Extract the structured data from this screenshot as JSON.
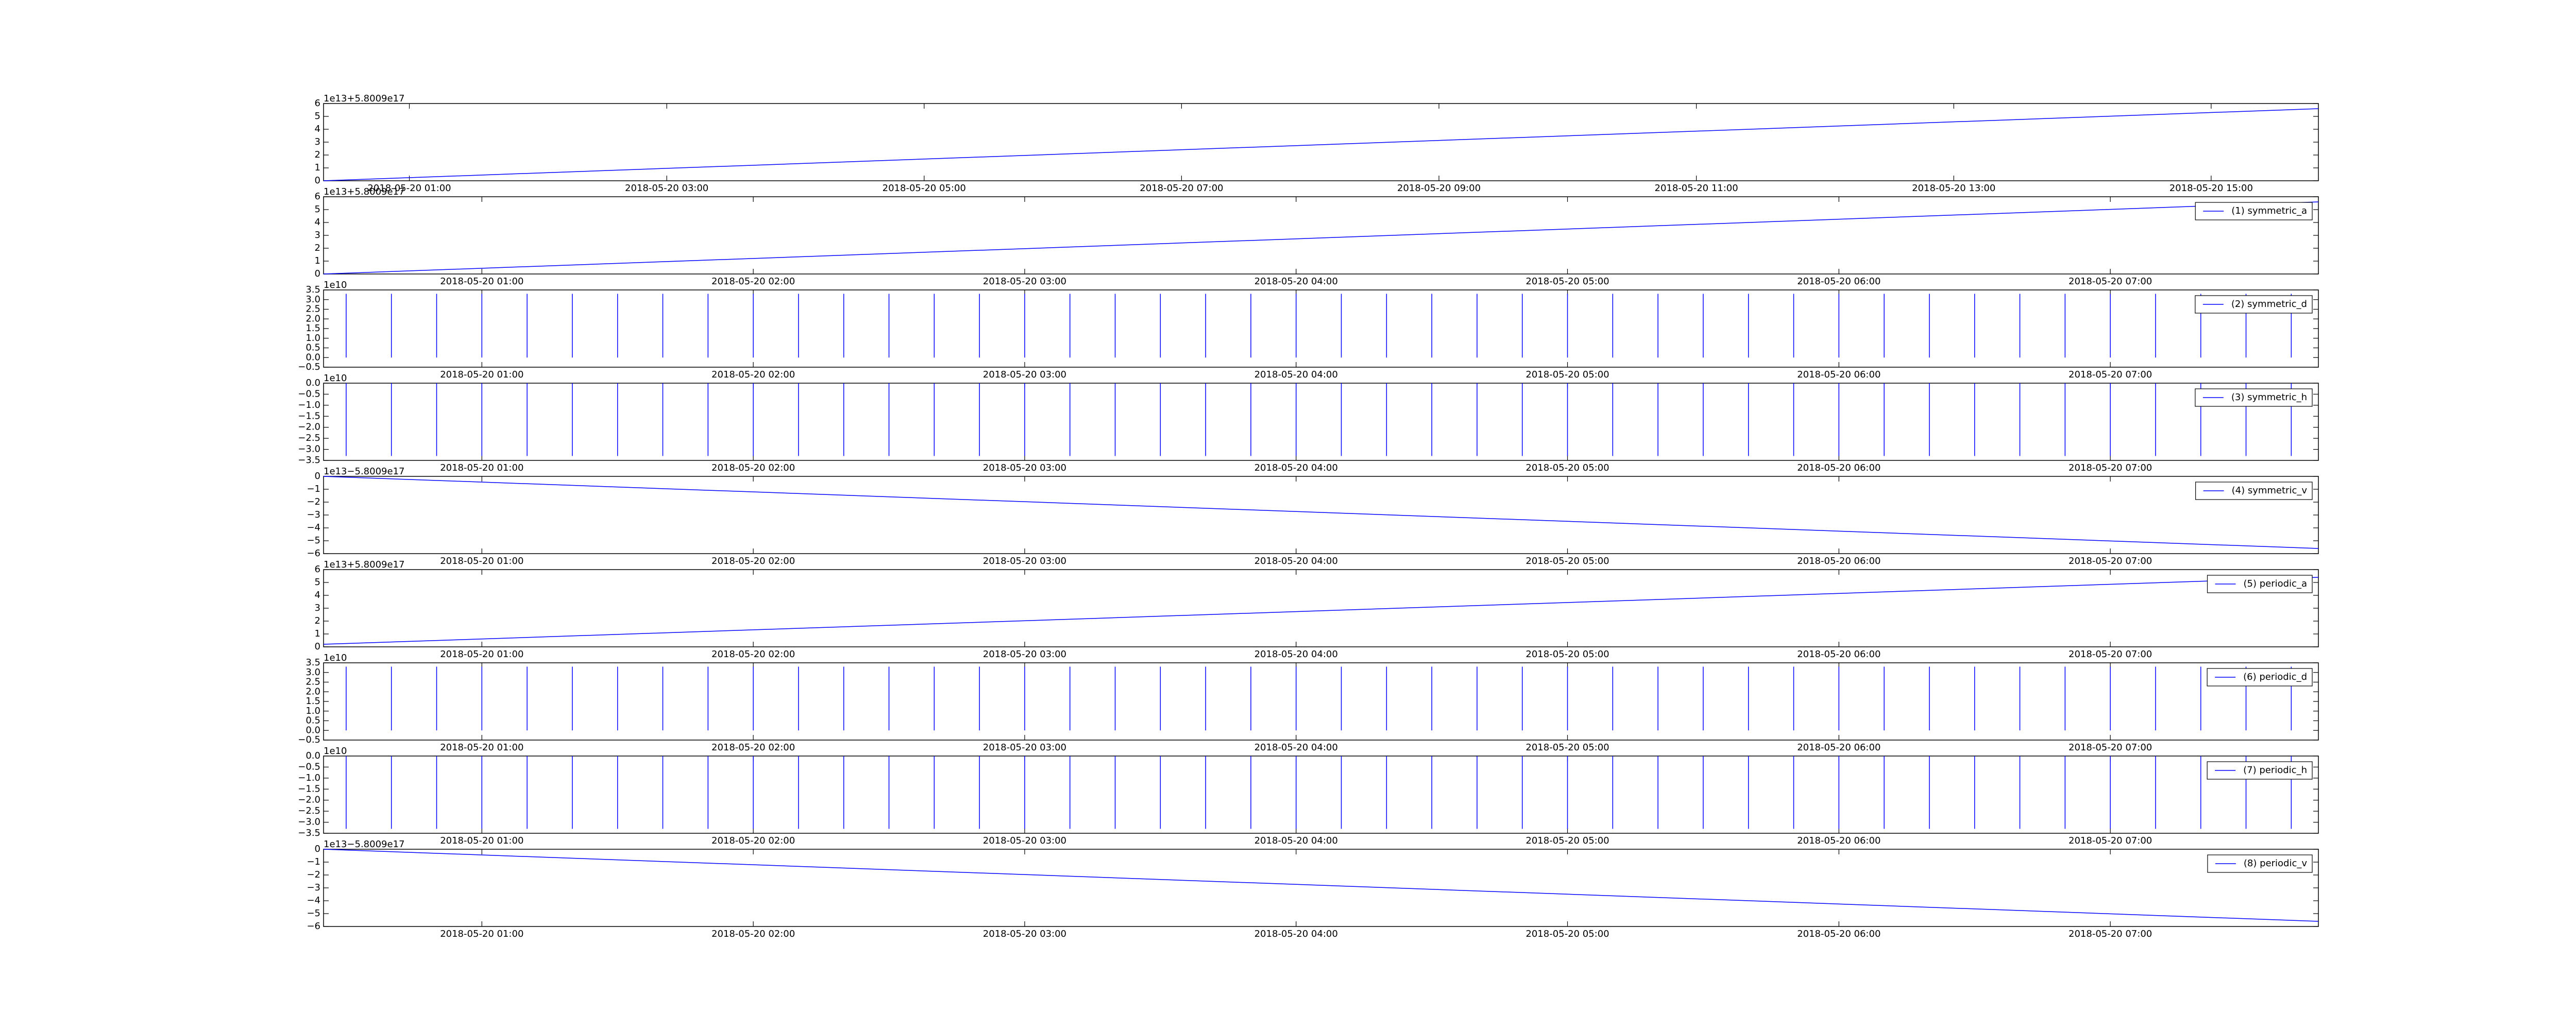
{
  "chart_data": [
    {
      "type": "line",
      "offset_text": "1e13+5.8009e17",
      "x": [
        "2018-05-20 00:20",
        "2018-05-20 15:50"
      ],
      "values": [
        0,
        5.6
      ],
      "color": "#0000ff",
      "xlim": [
        "2018-05-20 00:20",
        "2018-05-20 15:50"
      ],
      "xticks": [
        "2018-05-20 01:00",
        "2018-05-20 03:00",
        "2018-05-20 05:00",
        "2018-05-20 07:00",
        "2018-05-20 09:00",
        "2018-05-20 11:00",
        "2018-05-20 13:00",
        "2018-05-20 15:00"
      ],
      "ylim": [
        0,
        6
      ],
      "yticks": [
        0,
        1,
        2,
        3,
        4,
        5,
        6
      ]
    },
    {
      "type": "line",
      "offset_text": "1e13+5.8009e17",
      "legend": "upper right",
      "x": [
        "2018-05-20 00:25",
        "2018-05-20 07:46"
      ],
      "series": [
        {
          "name": "(1) symmetric_a",
          "color": "#0000ff",
          "values": [
            0,
            5.6
          ]
        }
      ],
      "xlim": [
        "2018-05-20 00:25",
        "2018-05-20 07:46"
      ],
      "xticks": [
        "2018-05-20 01:00",
        "2018-05-20 02:00",
        "2018-05-20 03:00",
        "2018-05-20 04:00",
        "2018-05-20 05:00",
        "2018-05-20 06:00",
        "2018-05-20 07:00"
      ],
      "ylim": [
        0,
        6
      ],
      "yticks": [
        0,
        1,
        2,
        3,
        4,
        5,
        6
      ]
    },
    {
      "type": "spikes",
      "offset_text": "1e10",
      "legend": "upper right",
      "x": [
        "2018-05-20 00:30",
        "2018-05-20 00:40",
        "2018-05-20 00:50",
        "2018-05-20 01:00",
        "2018-05-20 01:10",
        "2018-05-20 01:20",
        "2018-05-20 01:30",
        "2018-05-20 01:40",
        "2018-05-20 01:50",
        "2018-05-20 02:00",
        "2018-05-20 02:10",
        "2018-05-20 02:20",
        "2018-05-20 02:30",
        "2018-05-20 02:40",
        "2018-05-20 02:50",
        "2018-05-20 03:00",
        "2018-05-20 03:10",
        "2018-05-20 03:20",
        "2018-05-20 03:30",
        "2018-05-20 03:40",
        "2018-05-20 03:50",
        "2018-05-20 04:00",
        "2018-05-20 04:10",
        "2018-05-20 04:20",
        "2018-05-20 04:30",
        "2018-05-20 04:40",
        "2018-05-20 04:50",
        "2018-05-20 05:00",
        "2018-05-20 05:10",
        "2018-05-20 05:20",
        "2018-05-20 05:30",
        "2018-05-20 05:40",
        "2018-05-20 05:50",
        "2018-05-20 06:00",
        "2018-05-20 06:10",
        "2018-05-20 06:20",
        "2018-05-20 06:30",
        "2018-05-20 06:40",
        "2018-05-20 06:50",
        "2018-05-20 07:00",
        "2018-05-20 07:10",
        "2018-05-20 07:20",
        "2018-05-20 07:30",
        "2018-05-20 07:40"
      ],
      "series": [
        {
          "name": "(2) symmetric_d",
          "color": "#0000ff",
          "values": [
            3.3,
            3.3,
            3.3,
            3.3,
            3.3,
            3.3,
            3.3,
            3.3,
            3.3,
            3.3,
            3.3,
            3.3,
            3.3,
            3.3,
            3.3,
            3.3,
            3.3,
            3.3,
            3.3,
            3.3,
            3.3,
            3.3,
            3.3,
            3.3,
            3.3,
            3.3,
            3.3,
            3.3,
            3.3,
            3.3,
            3.3,
            3.3,
            3.3,
            3.3,
            3.3,
            3.3,
            3.3,
            3.3,
            3.3,
            3.3,
            3.3,
            3.3,
            3.3,
            3.3
          ]
        }
      ],
      "xlim": [
        "2018-05-20 00:25",
        "2018-05-20 07:46"
      ],
      "xticks": [
        "2018-05-20 01:00",
        "2018-05-20 02:00",
        "2018-05-20 03:00",
        "2018-05-20 04:00",
        "2018-05-20 05:00",
        "2018-05-20 06:00",
        "2018-05-20 07:00"
      ],
      "ylim": [
        -0.5,
        3.5
      ],
      "yticks": [
        {
          "value": -0.5,
          "label": "−0.5"
        },
        {
          "value": 0,
          "label": "0.0"
        },
        0.5,
        {
          "value": 1,
          "label": "1.0"
        },
        1.5,
        {
          "value": 2,
          "label": "2.0"
        },
        2.5,
        {
          "value": 3,
          "label": "3.0"
        },
        3.5
      ]
    },
    {
      "type": "spikes",
      "offset_text": "1e10",
      "legend": "upper right",
      "x": [
        "2018-05-20 00:30",
        "2018-05-20 00:40",
        "2018-05-20 00:50",
        "2018-05-20 01:00",
        "2018-05-20 01:10",
        "2018-05-20 01:20",
        "2018-05-20 01:30",
        "2018-05-20 01:40",
        "2018-05-20 01:50",
        "2018-05-20 02:00",
        "2018-05-20 02:10",
        "2018-05-20 02:20",
        "2018-05-20 02:30",
        "2018-05-20 02:40",
        "2018-05-20 02:50",
        "2018-05-20 03:00",
        "2018-05-20 03:10",
        "2018-05-20 03:20",
        "2018-05-20 03:30",
        "2018-05-20 03:40",
        "2018-05-20 03:50",
        "2018-05-20 04:00",
        "2018-05-20 04:10",
        "2018-05-20 04:20",
        "2018-05-20 04:30",
        "2018-05-20 04:40",
        "2018-05-20 04:50",
        "2018-05-20 05:00",
        "2018-05-20 05:10",
        "2018-05-20 05:20",
        "2018-05-20 05:30",
        "2018-05-20 05:40",
        "2018-05-20 05:50",
        "2018-05-20 06:00",
        "2018-05-20 06:10",
        "2018-05-20 06:20",
        "2018-05-20 06:30",
        "2018-05-20 06:40",
        "2018-05-20 06:50",
        "2018-05-20 07:00",
        "2018-05-20 07:10",
        "2018-05-20 07:20",
        "2018-05-20 07:30",
        "2018-05-20 07:40"
      ],
      "series": [
        {
          "name": "(3) symmetric_h",
          "color": "#0000ff",
          "values": [
            -3.3,
            -3.3,
            -3.3,
            -3.3,
            -3.3,
            -3.3,
            -3.3,
            -3.3,
            -3.3,
            -3.3,
            -3.3,
            -3.3,
            -3.3,
            -3.3,
            -3.3,
            -3.3,
            -3.3,
            -3.3,
            -3.3,
            -3.3,
            -3.3,
            -3.3,
            -3.3,
            -3.3,
            -3.3,
            -3.3,
            -3.3,
            -3.3,
            -3.3,
            -3.3,
            -3.3,
            -3.3,
            -3.3,
            -3.3,
            -3.3,
            -3.3,
            -3.3,
            -3.3,
            -3.3,
            -3.3,
            -3.3,
            -3.3,
            -3.3,
            -3.3
          ]
        }
      ],
      "xlim": [
        "2018-05-20 00:25",
        "2018-05-20 07:46"
      ],
      "xticks": [
        "2018-05-20 01:00",
        "2018-05-20 02:00",
        "2018-05-20 03:00",
        "2018-05-20 04:00",
        "2018-05-20 05:00",
        "2018-05-20 06:00",
        "2018-05-20 07:00"
      ],
      "ylim": [
        -3.5,
        0
      ],
      "yticks": [
        {
          "value": -3.5,
          "label": "−3.5"
        },
        {
          "value": -3,
          "label": "−3.0"
        },
        {
          "value": -2.5,
          "label": "−2.5"
        },
        {
          "value": -2,
          "label": "−2.0"
        },
        {
          "value": -1.5,
          "label": "−1.5"
        },
        {
          "value": -1,
          "label": "−1.0"
        },
        {
          "value": -0.5,
          "label": "−0.5"
        },
        {
          "value": 0,
          "label": "0.0"
        }
      ]
    },
    {
      "type": "line",
      "offset_text": "1e13−5.8009e17",
      "legend": "upper right",
      "x": [
        "2018-05-20 00:25",
        "2018-05-20 07:46"
      ],
      "series": [
        {
          "name": "(4) symmetric_v",
          "color": "#0000ff",
          "values": [
            0,
            -5.6
          ]
        }
      ],
      "xlim": [
        "2018-05-20 00:25",
        "2018-05-20 07:46"
      ],
      "xticks": [
        "2018-05-20 01:00",
        "2018-05-20 02:00",
        "2018-05-20 03:00",
        "2018-05-20 04:00",
        "2018-05-20 05:00",
        "2018-05-20 06:00",
        "2018-05-20 07:00"
      ],
      "ylim": [
        -6,
        0
      ],
      "yticks": [
        {
          "value": -6,
          "label": "−6"
        },
        {
          "value": -5,
          "label": "−5"
        },
        {
          "value": -4,
          "label": "−4"
        },
        {
          "value": -3,
          "label": "−3"
        },
        {
          "value": -2,
          "label": "−2"
        },
        {
          "value": -1,
          "label": "−1"
        },
        0
      ]
    },
    {
      "type": "line",
      "offset_text": "1e13+5.8009e17",
      "legend": "upper right",
      "x": [
        "2018-05-20 00:25",
        "2018-05-20 07:46"
      ],
      "series": [
        {
          "name": "(5) periodic_a",
          "color": "#0000ff",
          "values": [
            0.2,
            5.4
          ]
        }
      ],
      "xlim": [
        "2018-05-20 00:25",
        "2018-05-20 07:46"
      ],
      "xticks": [
        "2018-05-20 01:00",
        "2018-05-20 02:00",
        "2018-05-20 03:00",
        "2018-05-20 04:00",
        "2018-05-20 05:00",
        "2018-05-20 06:00",
        "2018-05-20 07:00"
      ],
      "ylim": [
        0,
        6
      ],
      "yticks": [
        0,
        1,
        2,
        3,
        4,
        5,
        6
      ]
    },
    {
      "type": "spikes",
      "offset_text": "1e10",
      "legend": "upper right",
      "x": [
        "2018-05-20 00:30",
        "2018-05-20 00:40",
        "2018-05-20 00:50",
        "2018-05-20 01:00",
        "2018-05-20 01:10",
        "2018-05-20 01:20",
        "2018-05-20 01:30",
        "2018-05-20 01:40",
        "2018-05-20 01:50",
        "2018-05-20 02:00",
        "2018-05-20 02:10",
        "2018-05-20 02:20",
        "2018-05-20 02:30",
        "2018-05-20 02:40",
        "2018-05-20 02:50",
        "2018-05-20 03:00",
        "2018-05-20 03:10",
        "2018-05-20 03:20",
        "2018-05-20 03:30",
        "2018-05-20 03:40",
        "2018-05-20 03:50",
        "2018-05-20 04:00",
        "2018-05-20 04:10",
        "2018-05-20 04:20",
        "2018-05-20 04:30",
        "2018-05-20 04:40",
        "2018-05-20 04:50",
        "2018-05-20 05:00",
        "2018-05-20 05:10",
        "2018-05-20 05:20",
        "2018-05-20 05:30",
        "2018-05-20 05:40",
        "2018-05-20 05:50",
        "2018-05-20 06:00",
        "2018-05-20 06:10",
        "2018-05-20 06:20",
        "2018-05-20 06:30",
        "2018-05-20 06:40",
        "2018-05-20 06:50",
        "2018-05-20 07:00",
        "2018-05-20 07:10",
        "2018-05-20 07:20",
        "2018-05-20 07:30",
        "2018-05-20 07:40"
      ],
      "series": [
        {
          "name": "(6) periodic_d",
          "color": "#0000ff",
          "values": [
            3.3,
            3.3,
            3.3,
            3.3,
            3.3,
            3.3,
            3.3,
            3.3,
            3.3,
            3.3,
            3.3,
            3.3,
            3.3,
            3.3,
            3.3,
            3.3,
            3.3,
            3.3,
            3.3,
            3.3,
            3.3,
            3.3,
            3.3,
            3.3,
            3.3,
            3.3,
            3.3,
            3.3,
            3.3,
            3.3,
            3.3,
            3.3,
            3.3,
            3.3,
            3.3,
            3.3,
            3.3,
            3.3,
            3.3,
            3.3,
            3.3,
            3.3,
            3.3,
            3.3
          ]
        }
      ],
      "xlim": [
        "2018-05-20 00:25",
        "2018-05-20 07:46"
      ],
      "xticks": [
        "2018-05-20 01:00",
        "2018-05-20 02:00",
        "2018-05-20 03:00",
        "2018-05-20 04:00",
        "2018-05-20 05:00",
        "2018-05-20 06:00",
        "2018-05-20 07:00"
      ],
      "ylim": [
        -0.5,
        3.5
      ],
      "yticks": [
        {
          "value": -0.5,
          "label": "−0.5"
        },
        {
          "value": 0,
          "label": "0.0"
        },
        0.5,
        {
          "value": 1,
          "label": "1.0"
        },
        1.5,
        {
          "value": 2,
          "label": "2.0"
        },
        2.5,
        {
          "value": 3,
          "label": "3.0"
        },
        3.5
      ]
    },
    {
      "type": "spikes",
      "offset_text": "1e10",
      "legend": "upper right",
      "x": [
        "2018-05-20 00:30",
        "2018-05-20 00:40",
        "2018-05-20 00:50",
        "2018-05-20 01:00",
        "2018-05-20 01:10",
        "2018-05-20 01:20",
        "2018-05-20 01:30",
        "2018-05-20 01:40",
        "2018-05-20 01:50",
        "2018-05-20 02:00",
        "2018-05-20 02:10",
        "2018-05-20 02:20",
        "2018-05-20 02:30",
        "2018-05-20 02:40",
        "2018-05-20 02:50",
        "2018-05-20 03:00",
        "2018-05-20 03:10",
        "2018-05-20 03:20",
        "2018-05-20 03:30",
        "2018-05-20 03:40",
        "2018-05-20 03:50",
        "2018-05-20 04:00",
        "2018-05-20 04:10",
        "2018-05-20 04:20",
        "2018-05-20 04:30",
        "2018-05-20 04:40",
        "2018-05-20 04:50",
        "2018-05-20 05:00",
        "2018-05-20 05:10",
        "2018-05-20 05:20",
        "2018-05-20 05:30",
        "2018-05-20 05:40",
        "2018-05-20 05:50",
        "2018-05-20 06:00",
        "2018-05-20 06:10",
        "2018-05-20 06:20",
        "2018-05-20 06:30",
        "2018-05-20 06:40",
        "2018-05-20 06:50",
        "2018-05-20 07:00",
        "2018-05-20 07:10",
        "2018-05-20 07:20",
        "2018-05-20 07:30",
        "2018-05-20 07:40"
      ],
      "series": [
        {
          "name": "(7) periodic_h",
          "color": "#0000ff",
          "values": [
            -3.3,
            -3.3,
            -3.3,
            -3.3,
            -3.3,
            -3.3,
            -3.3,
            -3.3,
            -3.3,
            -3.3,
            -3.3,
            -3.3,
            -3.3,
            -3.3,
            -3.3,
            -3.3,
            -3.3,
            -3.3,
            -3.3,
            -3.3,
            -3.3,
            -3.3,
            -3.3,
            -3.3,
            -3.3,
            -3.3,
            -3.3,
            -3.3,
            -3.3,
            -3.3,
            -3.3,
            -3.3,
            -3.3,
            -3.3,
            -3.3,
            -3.3,
            -3.3,
            -3.3,
            -3.3,
            -3.3,
            -3.3,
            -3.3,
            -3.3,
            -3.3
          ]
        }
      ],
      "xlim": [
        "2018-05-20 00:25",
        "2018-05-20 07:46"
      ],
      "xticks": [
        "2018-05-20 01:00",
        "2018-05-20 02:00",
        "2018-05-20 03:00",
        "2018-05-20 04:00",
        "2018-05-20 05:00",
        "2018-05-20 06:00",
        "2018-05-20 07:00"
      ],
      "ylim": [
        -3.5,
        0
      ],
      "yticks": [
        {
          "value": -3.5,
          "label": "−3.5"
        },
        {
          "value": -3,
          "label": "−3.0"
        },
        {
          "value": -2.5,
          "label": "−2.5"
        },
        {
          "value": -2,
          "label": "−2.0"
        },
        {
          "value": -1.5,
          "label": "−1.5"
        },
        {
          "value": -1,
          "label": "−1.0"
        },
        {
          "value": -0.5,
          "label": "−0.5"
        },
        {
          "value": 0,
          "label": "0.0"
        }
      ]
    },
    {
      "type": "line",
      "offset_text": "1e13−5.8009e17",
      "legend": "upper right",
      "x": [
        "2018-05-20 00:25",
        "2018-05-20 07:46"
      ],
      "series": [
        {
          "name": "(8) periodic_v",
          "color": "#0000ff",
          "values": [
            0,
            -5.6
          ]
        }
      ],
      "xlim": [
        "2018-05-20 00:25",
        "2018-05-20 07:46"
      ],
      "xticks": [
        "2018-05-20 01:00",
        "2018-05-20 02:00",
        "2018-05-20 03:00",
        "2018-05-20 04:00",
        "2018-05-20 05:00",
        "2018-05-20 06:00",
        "2018-05-20 07:00"
      ],
      "ylim": [
        -6,
        0
      ],
      "yticks": [
        {
          "value": -6,
          "label": "−6"
        },
        {
          "value": -5,
          "label": "−5"
        },
        {
          "value": -4,
          "label": "−4"
        },
        {
          "value": -3,
          "label": "−3"
        },
        {
          "value": -2,
          "label": "−2"
        },
        {
          "value": -1,
          "label": "−1"
        },
        0
      ]
    }
  ]
}
